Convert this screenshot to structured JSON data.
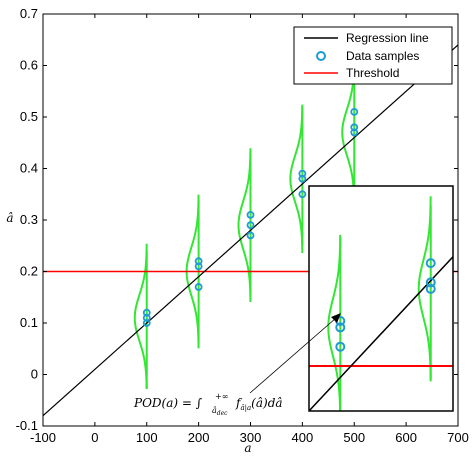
{
  "chart_data": {
    "type": "scatter",
    "title": "",
    "xlabel": "a",
    "ylabel": "â",
    "xlim": [
      -100,
      700
    ],
    "ylim": [
      -0.1,
      0.7
    ],
    "xticks": [
      "-100",
      "0",
      "100",
      "200",
      "300",
      "400",
      "500",
      "600",
      "700"
    ],
    "yticks": [
      "-0.1",
      "0",
      "0.1",
      "0.2",
      "0.3",
      "0.4",
      "0.5",
      "0.6",
      "0.7"
    ],
    "grid": false,
    "legend": {
      "placement": "top-right",
      "entries": [
        "Regression line",
        "Data samples",
        "Threshold"
      ]
    },
    "colors": {
      "regression": "#000000",
      "samples": "#1f9bd1",
      "threshold": "#ff0000",
      "distribution": "#33e633"
    },
    "regression_line": {
      "slope": 0.0009,
      "intercept": 0.01
    },
    "threshold": 0.2,
    "samples": [
      {
        "x": 100,
        "y": 0.1
      },
      {
        "x": 100,
        "y": 0.11
      },
      {
        "x": 100,
        "y": 0.12
      },
      {
        "x": 200,
        "y": 0.17
      },
      {
        "x": 200,
        "y": 0.21
      },
      {
        "x": 200,
        "y": 0.22
      },
      {
        "x": 300,
        "y": 0.27
      },
      {
        "x": 300,
        "y": 0.29
      },
      {
        "x": 300,
        "y": 0.31
      },
      {
        "x": 400,
        "y": 0.35
      },
      {
        "x": 400,
        "y": 0.38
      },
      {
        "x": 400,
        "y": 0.39
      },
      {
        "x": 500,
        "y": 0.47
      },
      {
        "x": 500,
        "y": 0.48
      },
      {
        "x": 500,
        "y": 0.51
      }
    ],
    "distributions": [
      {
        "x": 100,
        "mean": 0.11,
        "min": -0.03,
        "max": 0.24
      },
      {
        "x": 200,
        "mean": 0.2,
        "min": 0.06,
        "max": 0.34
      },
      {
        "x": 300,
        "mean": 0.29,
        "min": 0.15,
        "max": 0.43
      },
      {
        "x": 400,
        "mean": 0.38,
        "min": 0.25,
        "max": 0.52
      },
      {
        "x": 500,
        "mean": 0.47,
        "min": 0.33,
        "max": 0.6
      }
    ],
    "annotation": "POD(a) = ∫_{â_dec}^{+∞} f_{â|a}(â) dâ"
  },
  "annotation_parts": {
    "lhs": "POD(a) = ∫",
    "upper": "+∞",
    "lower": "â",
    "lower_sub": "dec",
    "integrand": "f",
    "integrand_sub": "â|a",
    "rest": "(â)dâ"
  }
}
